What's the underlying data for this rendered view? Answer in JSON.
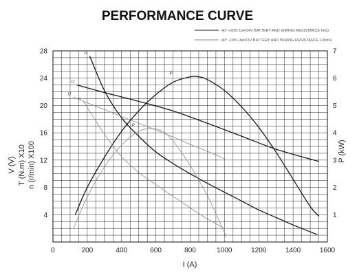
{
  "chart_data": {
    "type": "line",
    "title": "PERFORMANCE CURVE",
    "xlabel": "I (A)",
    "ylabel_left": [
      "V (V)",
      "T (N.m) X10",
      "n (r/min) X100"
    ],
    "ylabel_right": "P (kW)",
    "xlim": [
      0,
      1600
    ],
    "ylim_left": [
      0,
      28
    ],
    "ylim_right": [
      0,
      7
    ],
    "x_ticks": [
      "0",
      "200",
      "400",
      "600",
      "800",
      "1000",
      "1200",
      "1400",
      "1600"
    ],
    "y_ticks_left": [
      "4",
      "8",
      "12",
      "16",
      "20",
      "24",
      "28"
    ],
    "y_ticks_right": [
      "1",
      "2",
      "3",
      "4",
      "5",
      "6",
      "7"
    ],
    "grid": true,
    "legend": [
      {
        "text": "40° +20% Ua=24V  BATTERY AND WIRING RESISTANCE 6mΩ",
        "style": "solid"
      },
      {
        "text": "40° -20% Ua=23V  BATTERY AND WIRING RESISTANCE 100mΩ",
        "style": "light"
      }
    ],
    "series": [
      {
        "label": "n",
        "axis": "left",
        "style": "solid",
        "color": "#1a1a1a",
        "x": [
          215,
          300,
          400,
          500,
          600,
          700,
          800,
          900,
          1000,
          1100,
          1200,
          1300,
          1400,
          1540
        ],
        "y": [
          27.2,
          22.2,
          18.2,
          15.5,
          13.2,
          11.5,
          10.0,
          8.6,
          7.3,
          6.0,
          4.7,
          3.6,
          2.5,
          1.1
        ]
      },
      {
        "label": "U",
        "axis": "left",
        "style": "solid",
        "color": "#1a1a1a",
        "x": [
          140,
          300,
          500,
          700,
          900,
          1100,
          1300,
          1550
        ],
        "y": [
          23.0,
          21.9,
          20.6,
          19.2,
          17.4,
          15.5,
          13.6,
          11.8
        ]
      },
      {
        "label": "P",
        "axis": "right",
        "style": "solid",
        "color": "#1a1a1a",
        "x": [
          130,
          200,
          300,
          400,
          500,
          600,
          700,
          800,
          850,
          900,
          1000,
          1100,
          1200,
          1300,
          1400,
          1500,
          1550
        ],
        "y": [
          1.0,
          2.0,
          3.1,
          4.05,
          4.8,
          5.4,
          5.85,
          6.05,
          6.05,
          5.95,
          5.55,
          4.95,
          4.2,
          3.3,
          2.3,
          1.3,
          0.95
        ]
      },
      {
        "label": "U",
        "axis": "left",
        "style": "light",
        "color": "#8a8a8a",
        "x": [
          120,
          200,
          300,
          400,
          500,
          600,
          700,
          800,
          900,
          1000
        ],
        "y": [
          21.2,
          20.4,
          19.4,
          18.4,
          17.4,
          16.4,
          15.4,
          14.3,
          13.3,
          12.2
        ]
      },
      {
        "label": "n",
        "axis": "left",
        "style": "light",
        "color": "#8a8a8a",
        "x": [
          180,
          300,
          400,
          500,
          600,
          700,
          800,
          900,
          1000
        ],
        "y": [
          20.5,
          15.8,
          12.5,
          10.2,
          8.4,
          6.7,
          5.0,
          3.4,
          2.0
        ]
      },
      {
        "label": "P",
        "axis": "right",
        "style": "light",
        "color": "#8a8a8a",
        "x": [
          120,
          200,
          300,
          400,
          500,
          580,
          640,
          700,
          800,
          900,
          960,
          1010
        ],
        "y": [
          0.5,
          1.65,
          2.75,
          3.55,
          4.05,
          4.15,
          4.05,
          3.7,
          2.8,
          1.7,
          0.9,
          0.2
        ]
      }
    ]
  }
}
